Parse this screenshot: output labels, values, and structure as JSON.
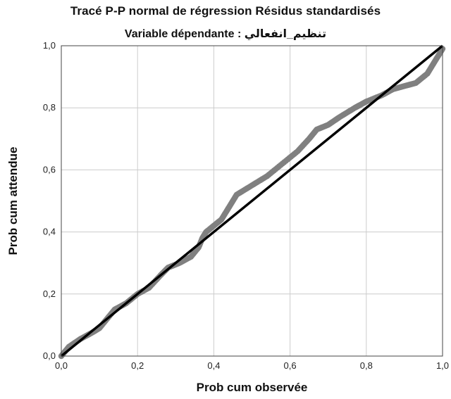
{
  "chart_data": {
    "type": "scatter",
    "title": "Tracé P-P normal de régression Résidus standardisés",
    "subtitle": "Variable dépendante : تنظيم_انفعالي",
    "xlabel": "Prob cum observée",
    "ylabel": "Prob cum attendue",
    "xlim": [
      0,
      1
    ],
    "ylim": [
      0,
      1
    ],
    "grid": true,
    "x_ticks": [
      "0,0",
      "0,2",
      "0,4",
      "0,6",
      "0,8",
      "1,0"
    ],
    "y_ticks": [
      "0,0",
      "0,2",
      "0,4",
      "0,6",
      "0,8",
      "1,0"
    ],
    "reference_line": {
      "from": [
        0,
        0
      ],
      "to": [
        1,
        1
      ]
    },
    "colors": {
      "points": "#808080",
      "line": "#000000",
      "grid": "#cccccc"
    },
    "curve_points": [
      [
        0.0,
        0.0
      ],
      [
        0.02,
        0.03
      ],
      [
        0.05,
        0.055
      ],
      [
        0.08,
        0.075
      ],
      [
        0.1,
        0.09
      ],
      [
        0.12,
        0.12
      ],
      [
        0.14,
        0.15
      ],
      [
        0.17,
        0.17
      ],
      [
        0.2,
        0.2
      ],
      [
        0.23,
        0.22
      ],
      [
        0.26,
        0.26
      ],
      [
        0.28,
        0.285
      ],
      [
        0.31,
        0.3
      ],
      [
        0.34,
        0.32
      ],
      [
        0.36,
        0.35
      ],
      [
        0.37,
        0.38
      ],
      [
        0.38,
        0.4
      ],
      [
        0.4,
        0.42
      ],
      [
        0.42,
        0.44
      ],
      [
        0.44,
        0.48
      ],
      [
        0.46,
        0.52
      ],
      [
        0.5,
        0.55
      ],
      [
        0.54,
        0.58
      ],
      [
        0.58,
        0.62
      ],
      [
        0.62,
        0.66
      ],
      [
        0.65,
        0.7
      ],
      [
        0.67,
        0.73
      ],
      [
        0.7,
        0.745
      ],
      [
        0.73,
        0.77
      ],
      [
        0.77,
        0.8
      ],
      [
        0.8,
        0.82
      ],
      [
        0.84,
        0.84
      ],
      [
        0.87,
        0.86
      ],
      [
        0.9,
        0.87
      ],
      [
        0.93,
        0.88
      ],
      [
        0.96,
        0.91
      ],
      [
        0.98,
        0.95
      ],
      [
        1.0,
        0.99
      ]
    ]
  }
}
